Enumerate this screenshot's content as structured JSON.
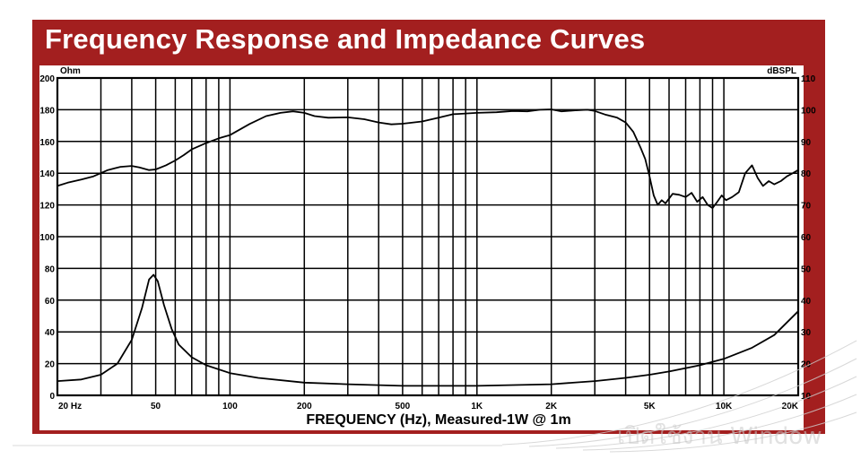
{
  "chart_data": {
    "type": "line",
    "title": "Frequency Response and Impedance Curves",
    "xlabel": "FREQUENCY (Hz), Measured-1W @ 1m",
    "x_scale": "log",
    "xlim": [
      20,
      20000
    ],
    "x_ticks": [
      {
        "value": 20,
        "label": "20 Hz"
      },
      {
        "value": 50,
        "label": "50"
      },
      {
        "value": 100,
        "label": "100"
      },
      {
        "value": 200,
        "label": "200"
      },
      {
        "value": 500,
        "label": "500"
      },
      {
        "value": 1000,
        "label": "1K"
      },
      {
        "value": 2000,
        "label": "2K"
      },
      {
        "value": 5000,
        "label": "5K"
      },
      {
        "value": 10000,
        "label": "10K"
      },
      {
        "value": 20000,
        "label": "20K"
      }
    ],
    "left_axis": {
      "unit": "Ohm",
      "range": [
        0,
        200
      ],
      "ticks": [
        "0",
        "20",
        "40",
        "60",
        "80",
        "100",
        "120",
        "140",
        "160",
        "180",
        "200"
      ]
    },
    "right_axis": {
      "unit": "dBSPL",
      "range": [
        10,
        110
      ],
      "ticks": [
        "10",
        "20",
        "30",
        "40",
        "50",
        "60",
        "70",
        "80",
        "90",
        "100",
        "110"
      ]
    },
    "grid": true,
    "series": [
      {
        "axis": "right",
        "points": [
          [
            20,
            76
          ],
          [
            22,
            77
          ],
          [
            25,
            78
          ],
          [
            28,
            79
          ],
          [
            32,
            81
          ],
          [
            36,
            82
          ],
          [
            40,
            82.3
          ],
          [
            43,
            81.8
          ],
          [
            47,
            81
          ],
          [
            50,
            81.2
          ],
          [
            55,
            82.5
          ],
          [
            60,
            84
          ],
          [
            65,
            85.7
          ],
          [
            70,
            87.5
          ],
          [
            80,
            89.5
          ],
          [
            90,
            91
          ],
          [
            100,
            92
          ],
          [
            120,
            95.5
          ],
          [
            140,
            98
          ],
          [
            160,
            99
          ],
          [
            180,
            99.5
          ],
          [
            200,
            99
          ],
          [
            220,
            98
          ],
          [
            250,
            97.5
          ],
          [
            300,
            97.6
          ],
          [
            350,
            97
          ],
          [
            400,
            96
          ],
          [
            450,
            95.4
          ],
          [
            500,
            95.6
          ],
          [
            600,
            96.3
          ],
          [
            700,
            97.5
          ],
          [
            800,
            98.6
          ],
          [
            900,
            98.8
          ],
          [
            1000,
            99
          ],
          [
            1200,
            99.2
          ],
          [
            1400,
            99.6
          ],
          [
            1600,
            99.5
          ],
          [
            1800,
            100
          ],
          [
            2000,
            100.1
          ],
          [
            2200,
            99.5
          ],
          [
            2500,
            99.8
          ],
          [
            2800,
            100
          ],
          [
            3000,
            99.6
          ],
          [
            3300,
            98.5
          ],
          [
            3700,
            97.5
          ],
          [
            4000,
            96
          ],
          [
            4300,
            93
          ],
          [
            4600,
            88
          ],
          [
            4800,
            84.5
          ],
          [
            5000,
            79
          ],
          [
            5200,
            73
          ],
          [
            5400,
            70
          ],
          [
            5600,
            71.5
          ],
          [
            5800,
            70.5
          ],
          [
            6200,
            73.5
          ],
          [
            6600,
            73.2
          ],
          [
            7000,
            72.5
          ],
          [
            7400,
            73.8
          ],
          [
            7800,
            71
          ],
          [
            8200,
            72.5
          ],
          [
            8600,
            70
          ],
          [
            9000,
            69
          ],
          [
            9400,
            71
          ],
          [
            9800,
            73
          ],
          [
            10200,
            71.5
          ],
          [
            10800,
            72.5
          ],
          [
            11500,
            74
          ],
          [
            12200,
            80
          ],
          [
            13000,
            82.5
          ],
          [
            13700,
            78.5
          ],
          [
            14400,
            76
          ],
          [
            15200,
            77.5
          ],
          [
            16000,
            76.5
          ],
          [
            17000,
            77.5
          ],
          [
            18000,
            79
          ],
          [
            19000,
            80
          ],
          [
            20000,
            81
          ]
        ]
      },
      {
        "axis": "left",
        "points": [
          [
            20,
            9
          ],
          [
            25,
            10
          ],
          [
            30,
            13
          ],
          [
            35,
            20
          ],
          [
            40,
            35
          ],
          [
            44,
            55
          ],
          [
            47,
            73
          ],
          [
            49,
            76
          ],
          [
            51,
            72
          ],
          [
            54,
            57
          ],
          [
            58,
            42
          ],
          [
            62,
            32
          ],
          [
            70,
            24
          ],
          [
            80,
            19
          ],
          [
            100,
            14
          ],
          [
            130,
            11
          ],
          [
            200,
            8
          ],
          [
            300,
            7
          ],
          [
            500,
            6
          ],
          [
            1000,
            6
          ],
          [
            2000,
            7
          ],
          [
            3000,
            9
          ],
          [
            4000,
            11
          ],
          [
            5000,
            13
          ],
          [
            6000,
            15
          ],
          [
            8000,
            19
          ],
          [
            10000,
            23
          ],
          [
            13000,
            30
          ],
          [
            16000,
            38
          ],
          [
            20000,
            53
          ]
        ]
      }
    ]
  },
  "watermark": "เปิดใช้งาน Window",
  "colors": {
    "frame": "#a31f1f",
    "plot_bg": "#ffffff",
    "ink": "#000000"
  }
}
